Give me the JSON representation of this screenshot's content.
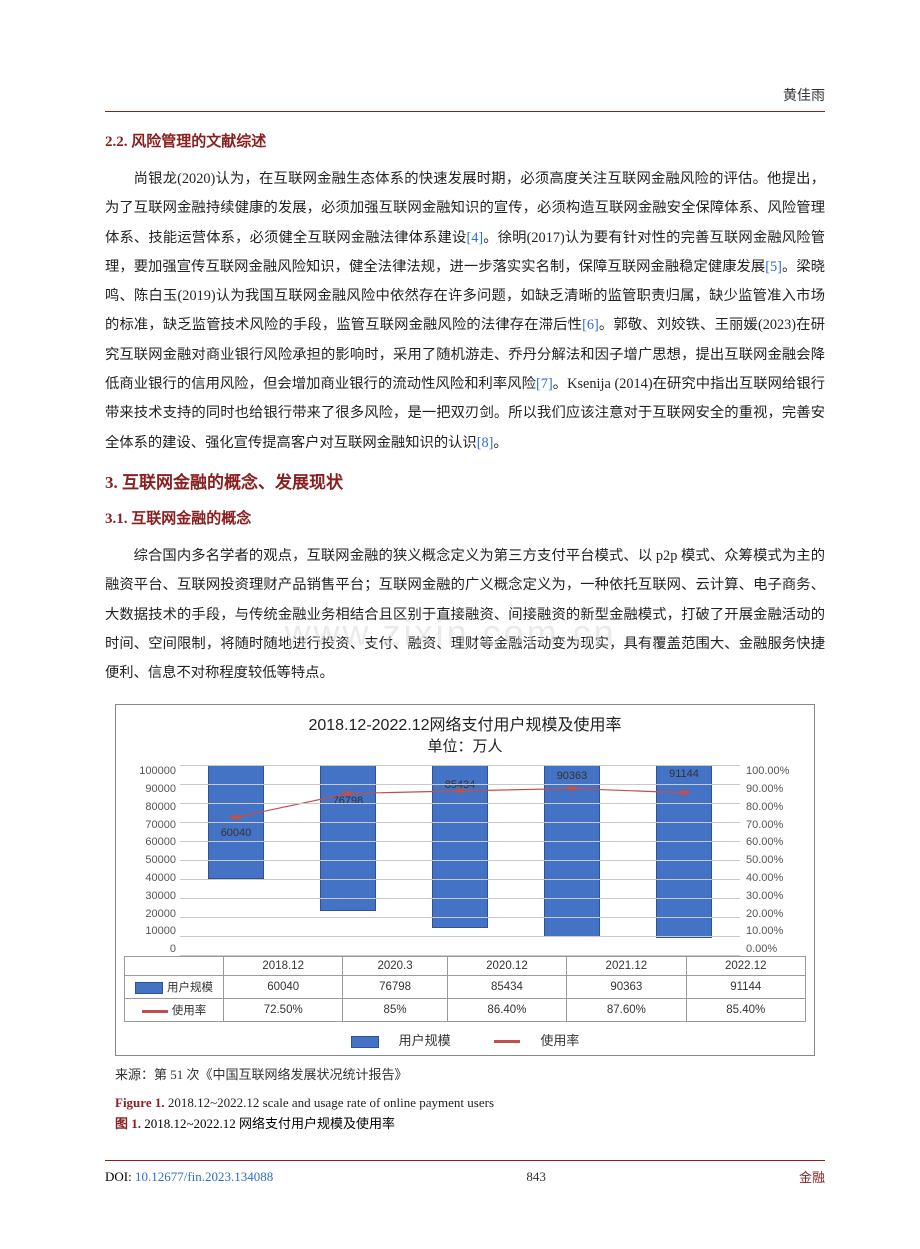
{
  "header": {
    "author": "黄佳雨"
  },
  "sections": {
    "s22_heading": "2.2. 风险管理的文献综述",
    "s22_para": "尚银龙(2020)认为，在互联网金融生态体系的快速发展时期，必须高度关注互联网金融风险的评估。他提出，为了互联网金融持续健康的发展，必须加强互联网金融知识的宣传，必须构造互联网金融安全保障体系、风险管理体系、技能运营体系，必须健全互联网金融法律体系建设[4]。徐明(2017)认为要有针对性的完善互联网金融风险管理，要加强宣传互联网金融风险知识，健全法律法规，进一步落实实名制，保障互联网金融稳定健康发展[5]。梁晓鸣、陈白玉(2019)认为我国互联网金融风险中依然存在许多问题，如缺乏清晰的监管职责归属，缺少监管准入市场的标准，缺乏监管技术风险的手段，监管互联网金融风险的法律存在滞后性[6]。郭敬、刘姣铁、王丽媛(2023)在研究互联网金融对商业银行风险承担的影响时，采用了随机游走、乔丹分解法和因子增广思想，提出互联网金融会降低商业银行的信用风险，但会增加商业银行的流动性风险和利率风险[7]。Ksenija (2014)在研究中指出互联网给银行带来技术支持的同时也给银行带来了很多风险，是一把双刃剑。所以我们应该注意对于互联网安全的重视，完善安全体系的建设、强化宣传提高客户对互联网金融知识的认识[8]。",
    "s3_heading": "3. 互联网金融的概念、发展现状",
    "s31_heading": "3.1. 互联网金融的概念",
    "s31_para": "综合国内多名学者的观点，互联网金融的狭义概念定义为第三方支付平台模式、以 p2p 模式、众筹模式为主的融资平台、互联网投资理财产品销售平台；互联网金融的广义概念定义为，一种依托互联网、云计算、电子商务、大数据技术的手段，与传统金融业务相结合且区别于直接融资、间接融资的新型金融模式，打破了开展金融活动的时间、空间限制，将随时随地进行投资、支付、融资、理财等金融活动变为现实，具有覆盖范围大、金融服务快捷便利、信息不对称程度较低等特点。"
  },
  "watermark": "www.zixin.com.cn",
  "chart": {
    "type": "bar+line",
    "title_line1": "2018.12-2022.12网络支付用户规模及使用率",
    "title_line2": "单位：万人",
    "categories": [
      "2018.12",
      "2020.3",
      "2020.12",
      "2021.12",
      "2022.12"
    ],
    "bar_series_name": "用户规模",
    "bar_values": [
      60040,
      76798,
      85434,
      90363,
      91144
    ],
    "bar_color": "#4472c4",
    "bar_border": "#2f528f",
    "line_series_name": "使用率",
    "line_values_pct": [
      72.5,
      85.0,
      86.4,
      87.6,
      85.4
    ],
    "line_display": [
      "72.50%",
      "85%",
      "86.40%",
      "87.60%",
      "85.40%"
    ],
    "line_color": "#c0504d",
    "y_left_max": 100000,
    "y_left_ticks": [
      100000,
      90000,
      80000,
      70000,
      60000,
      50000,
      40000,
      30000,
      20000,
      10000,
      0
    ],
    "y_right_ticks": [
      "100.00%",
      "90.00%",
      "80.00%",
      "70.00%",
      "60.00%",
      "50.00%",
      "40.00%",
      "30.00%",
      "20.00%",
      "10.00%",
      "0.00%"
    ],
    "grid_color": "#c9c9c9",
    "background": "#ffffff",
    "legend_bar": "用户规模",
    "legend_line": "使用率"
  },
  "source_line": "来源：第 51 次《中国互联网络发展状况统计报告》",
  "figure_caption_en_label": "Figure 1.",
  "figure_caption_en_text": " 2018.12~2022.12 scale and usage rate of online payment users",
  "figure_caption_cn_label": "图 1.",
  "figure_caption_cn_text": " 2018.12~2022.12 网络支付用户规模及使用率",
  "footer": {
    "doi_label": "DOI: ",
    "doi": "10.12677/fin.2023.134088",
    "page": "843",
    "journal": "金融"
  }
}
